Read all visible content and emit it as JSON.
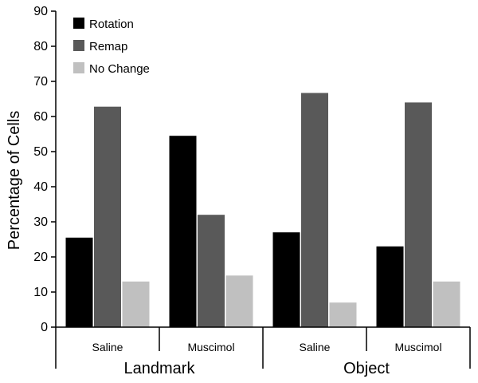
{
  "chart_data": {
    "type": "bar",
    "ylabel": "Percentage of Cells",
    "ylim": [
      0,
      90
    ],
    "yticks": [
      0,
      10,
      20,
      30,
      40,
      50,
      60,
      70,
      80,
      90
    ],
    "grid": false,
    "legend_position": "top-left",
    "categories": [
      "Saline",
      "Muscimol",
      "Saline",
      "Muscimol"
    ],
    "groups": [
      {
        "label": "Landmark",
        "categories": [
          "Saline",
          "Muscimol"
        ]
      },
      {
        "label": "Object",
        "categories": [
          "Saline",
          "Muscimol"
        ]
      }
    ],
    "series": [
      {
        "name": "Rotation",
        "color": "#000000",
        "values": [
          25.5,
          54.5,
          27,
          23
        ]
      },
      {
        "name": "Remap",
        "color": "#595959",
        "values": [
          62.8,
          32,
          66.7,
          64
        ]
      },
      {
        "name": "No Change",
        "color": "#c0c0c0",
        "values": [
          13,
          14.7,
          7,
          13
        ]
      }
    ]
  }
}
